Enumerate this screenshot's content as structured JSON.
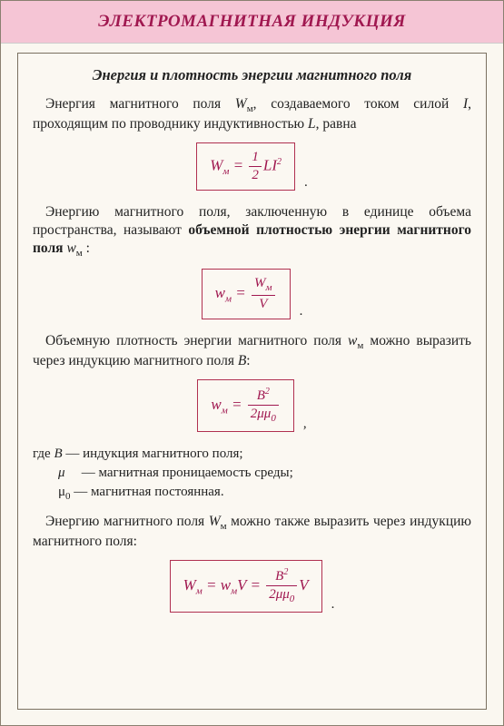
{
  "colors": {
    "header_bg": "#f5c5d5",
    "accent": "#a01850",
    "border": "#b03050",
    "page_bg": "#faf7f0",
    "text": "#222222"
  },
  "header": {
    "title": "ЭЛЕКТРОМАГНИТНАЯ ИНДУКЦИЯ"
  },
  "subtitle": "Энергия и плотность энергии магнитного поля",
  "p1": {
    "t1": "Энергия магнитного поля ",
    "sym1": "W",
    "sub1": "м",
    "t2": ", создаваемого током силой ",
    "sym2": "I",
    "t3": ", проходящим по проводнику индуктивностью ",
    "sym3": "L",
    "t4": ", равна"
  },
  "f1": {
    "lhs_W": "W",
    "lhs_sub": "м",
    "eq": "=",
    "num": "1",
    "den": "2",
    "rhs": "LI",
    "exp": "2",
    "after": "."
  },
  "p2": {
    "t1": "Энергию магнитного поля, заключенную в единице объема пространства, называют ",
    "bold": "объемной плотностью энергии магнитного поля ",
    "sym": "w",
    "sub": "м",
    "t2": " :"
  },
  "f2": {
    "lhs_w": "w",
    "lhs_sub": "м",
    "eq": "=",
    "num_W": "W",
    "num_sub": "м",
    "den": "V",
    "after": "."
  },
  "p3": {
    "t1": "Объемную плотность энергии магнитного поля ",
    "sym1": "w",
    "sub1": "м",
    "t2": " можно выразить через индукцию магнитного поля ",
    "sym2": "B",
    "t3": ":"
  },
  "f3": {
    "lhs_w": "w",
    "lhs_sub": "м",
    "eq": "=",
    "num_B": "B",
    "num_exp": "2",
    "den_2": "2",
    "den_mu": "μμ",
    "den_sub": "0",
    "after": ","
  },
  "defs": {
    "intro": "где ",
    "d1_sym": "B",
    "d1_txt": " — индукция магнитного поля;",
    "d2_sym": "μ",
    "d2_txt": " — магнитная проницаемость среды;",
    "d3_sym": "μ",
    "d3_sub": "0",
    "d3_txt": " — магнитная постоянная."
  },
  "p4": {
    "t1": "Энергию магнитного поля ",
    "sym": "W",
    "sub": "м",
    "t2": " можно также выразить через индукцию магнитного поля:"
  },
  "f4": {
    "lhs_W": "W",
    "lhs_sub": "м",
    "eq1": "=",
    "mid_w": "w",
    "mid_sub": "м",
    "mid_V": "V",
    "eq2": "=",
    "num_B": "B",
    "num_exp": "2",
    "den_2": "2",
    "den_mu": "μμ",
    "den_sub": "0",
    "tail_V": "V",
    "after": "."
  }
}
